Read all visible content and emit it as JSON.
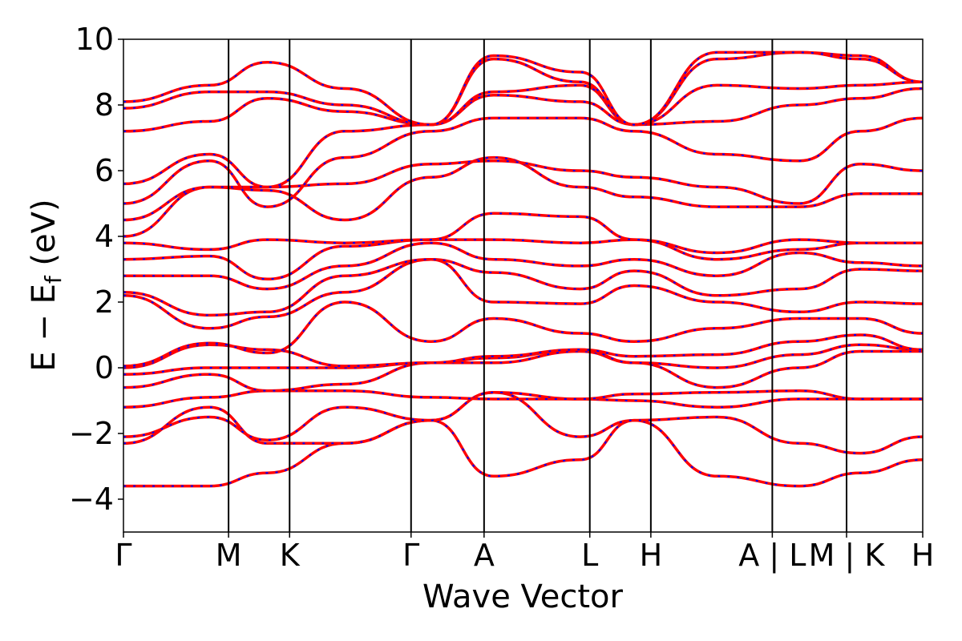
{
  "chart_data": {
    "type": "line",
    "title": "",
    "xlabel": "Wave Vector",
    "ylabel_main": "E − E",
    "ylabel_sub": "f",
    "ylabel_unit": " (eV)",
    "ylim": [
      -5,
      10
    ],
    "yticks": [
      {
        "value": -4,
        "label": "−4"
      },
      {
        "value": -2,
        "label": "−2"
      },
      {
        "value": 0,
        "label": "0"
      },
      {
        "value": 2,
        "label": "2"
      },
      {
        "value": 4,
        "label": "4"
      },
      {
        "value": 6,
        "label": "6"
      },
      {
        "value": 8,
        "label": "8"
      },
      {
        "value": 10,
        "label": "10"
      }
    ],
    "xlim": [
      0,
      12.7
    ],
    "high_symmetry_points": [
      {
        "x": 0.0,
        "label": "Γ"
      },
      {
        "x": 1.67,
        "label": "M"
      },
      {
        "x": 2.64,
        "label": "K"
      },
      {
        "x": 4.57,
        "label": "Γ"
      },
      {
        "x": 5.73,
        "label": "A"
      },
      {
        "x": 7.41,
        "label": "L"
      },
      {
        "x": 8.38,
        "label": "H"
      },
      {
        "x": 10.31,
        "label": "A | L"
      },
      {
        "x": 11.49,
        "label": "M | K"
      },
      {
        "x": 12.7,
        "label": "H"
      }
    ],
    "grid": false,
    "line_colors": {
      "primary": "#ff0000",
      "overlay": "#0000ff"
    },
    "segments": [
      0,
      1.67,
      2.64,
      4.57,
      5.73,
      7.41,
      8.38,
      10.31,
      11.49,
      12.7
    ],
    "bands": [
      {
        "k": [
          -3.6,
          -3.6,
          -3.2,
          -2.3,
          -1.6,
          -3.3,
          -2.8,
          -1.6,
          -3.3,
          -3.6,
          -3.2,
          -2.8
        ]
      },
      {
        "k": [
          -2.3,
          -1.2,
          -2.3,
          -2.3,
          -1.6,
          -0.75,
          -2.1,
          -1.6,
          -1.5,
          -2.3,
          -2.6,
          -2.1
        ]
      },
      {
        "k": [
          -2.1,
          -1.5,
          -2.2,
          -1.2,
          -1.6,
          -0.75,
          -0.95,
          -1.0,
          -1.2,
          -0.95,
          -0.95,
          -0.95
        ]
      },
      {
        "k": [
          -1.2,
          -0.9,
          -0.7,
          -0.7,
          -0.9,
          -0.95,
          -0.95,
          -0.8,
          -0.75,
          -0.7,
          -0.95,
          -0.95
        ]
      },
      {
        "k": [
          -0.6,
          -0.2,
          -0.7,
          -0.5,
          0.15,
          0.15,
          0.5,
          0.15,
          -0.6,
          0.0,
          0.5,
          0.5
        ]
      },
      {
        "k": [
          -0.2,
          0.0,
          0.0,
          0.0,
          0.15,
          0.3,
          0.55,
          0.15,
          0.0,
          0.4,
          0.7,
          0.55
        ]
      },
      {
        "k": [
          0.0,
          0.7,
          0.55,
          0.05,
          0.15,
          0.35,
          0.55,
          0.35,
          0.4,
          0.8,
          1.0,
          0.55
        ]
      },
      {
        "k": [
          0.05,
          0.75,
          0.45,
          2.0,
          0.8,
          1.5,
          1.05,
          0.8,
          1.2,
          1.5,
          1.5,
          1.05
        ]
      },
      {
        "k": [
          2.2,
          1.2,
          1.55,
          2.3,
          3.3,
          2.0,
          1.95,
          2.5,
          2.0,
          1.7,
          2.0,
          1.95
        ]
      },
      {
        "k": [
          2.3,
          1.6,
          1.7,
          2.8,
          3.3,
          2.9,
          2.4,
          2.95,
          2.2,
          2.4,
          3.0,
          2.95
        ]
      },
      {
        "k": [
          2.8,
          2.8,
          2.4,
          3.1,
          3.8,
          3.3,
          3.1,
          3.3,
          2.8,
          3.5,
          3.2,
          3.1
        ]
      },
      {
        "k": [
          3.3,
          3.4,
          2.7,
          3.7,
          3.9,
          3.9,
          3.8,
          3.9,
          3.3,
          3.6,
          3.8,
          3.8
        ]
      },
      {
        "k": [
          3.8,
          3.6,
          3.9,
          3.8,
          3.9,
          4.7,
          4.6,
          3.9,
          3.5,
          3.9,
          3.8,
          3.8
        ]
      },
      {
        "k": [
          4.0,
          5.5,
          5.4,
          4.5,
          5.8,
          6.4,
          5.5,
          5.2,
          4.9,
          4.9,
          5.3,
          5.3
        ]
      },
      {
        "k": [
          4.5,
          5.5,
          5.5,
          5.6,
          6.2,
          6.3,
          6.0,
          5.8,
          5.5,
          5.0,
          6.2,
          6.0
        ]
      },
      {
        "k": [
          5.0,
          6.3,
          4.9,
          6.4,
          7.2,
          7.6,
          7.6,
          7.2,
          6.5,
          6.3,
          7.2,
          7.6
        ]
      },
      {
        "k": [
          5.6,
          6.5,
          5.5,
          7.2,
          7.4,
          8.3,
          8.1,
          7.4,
          7.5,
          8.0,
          8.2,
          8.5
        ]
      },
      {
        "k": [
          7.2,
          7.5,
          8.2,
          7.8,
          7.4,
          8.4,
          8.6,
          7.4,
          8.6,
          8.5,
          8.6,
          8.7
        ]
      },
      {
        "k": [
          7.9,
          8.4,
          8.4,
          8.0,
          7.4,
          9.4,
          8.7,
          7.4,
          9.4,
          9.6,
          9.5,
          8.7
        ]
      },
      {
        "k": [
          8.1,
          8.6,
          9.3,
          8.5,
          7.4,
          9.5,
          9.0,
          7.4,
          9.6,
          9.6,
          9.4,
          8.7
        ]
      }
    ]
  }
}
